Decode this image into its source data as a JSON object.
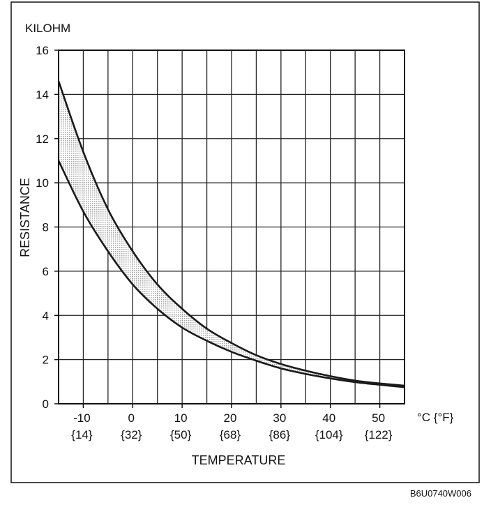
{
  "chart_data": {
    "type": "area",
    "title": "",
    "ylabel_top": "KILOHM",
    "ylabel": "RESISTANCE",
    "xlabel": "TEMPERATURE",
    "x_unit_label": "°C {°F}",
    "xlim": [
      -15,
      55
    ],
    "ylim": [
      0,
      16
    ],
    "grid": true,
    "x_ticks": [
      {
        "value": -10,
        "c": "-10",
        "f": "{14}"
      },
      {
        "value": 0,
        "c": "0",
        "f": "{32}"
      },
      {
        "value": 10,
        "c": "10",
        "f": "{50}"
      },
      {
        "value": 20,
        "c": "20",
        "f": "{68}"
      },
      {
        "value": 30,
        "c": "30",
        "f": "{86}"
      },
      {
        "value": 40,
        "c": "40",
        "f": "{104}"
      },
      {
        "value": 50,
        "c": "50",
        "f": "{122}"
      }
    ],
    "y_ticks": [
      {
        "value": 0,
        "label": "0"
      },
      {
        "value": 2,
        "label": "2"
      },
      {
        "value": 4,
        "label": "4"
      },
      {
        "value": 6,
        "label": "6"
      },
      {
        "value": 8,
        "label": "8"
      },
      {
        "value": 10,
        "label": "10"
      },
      {
        "value": 12,
        "label": "12"
      },
      {
        "value": 14,
        "label": "14"
      },
      {
        "value": 16,
        "label": "16"
      }
    ],
    "series": [
      {
        "name": "upper",
        "x": [
          -15,
          -10,
          -5,
          0,
          5,
          10,
          15,
          20,
          25,
          30,
          35,
          40,
          45,
          50,
          55
        ],
        "y": [
          14.6,
          11.4,
          8.8,
          6.9,
          5.4,
          4.3,
          3.4,
          2.75,
          2.2,
          1.8,
          1.5,
          1.25,
          1.05,
          0.92,
          0.82
        ]
      },
      {
        "name": "lower",
        "x": [
          -15,
          -10,
          -5,
          0,
          5,
          10,
          15,
          20,
          25,
          30,
          35,
          40,
          45,
          50,
          55
        ],
        "y": [
          11.0,
          8.7,
          6.9,
          5.4,
          4.3,
          3.45,
          2.85,
          2.35,
          1.95,
          1.6,
          1.35,
          1.15,
          0.98,
          0.86,
          0.75
        ]
      }
    ],
    "band_fill_color": "#c9c9c9",
    "line_color": "#1a1a1a",
    "figure_code": "B6U0740W006"
  }
}
